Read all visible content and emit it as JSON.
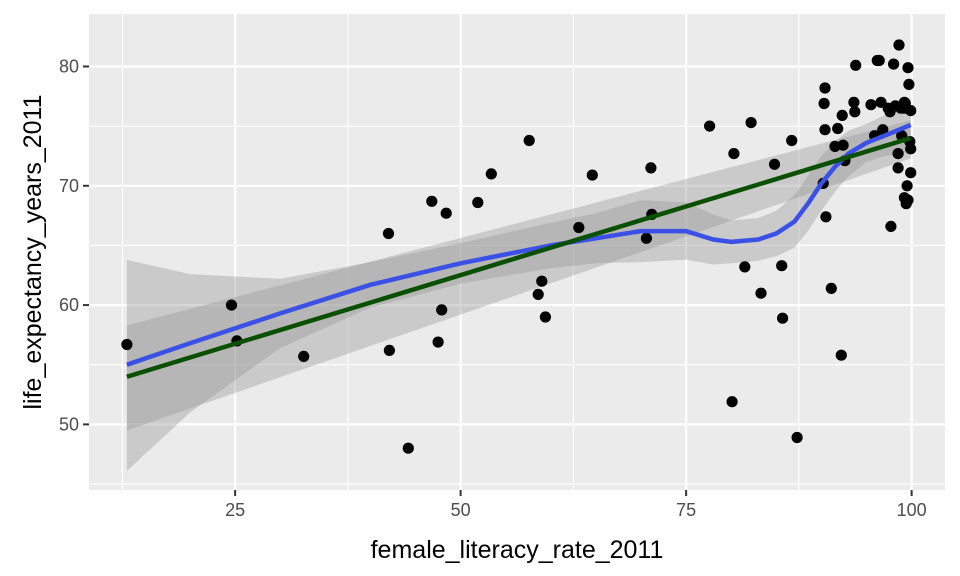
{
  "chart_data": {
    "type": "scatter",
    "xlabel": "female_literacy_rate_2011",
    "ylabel": "life_expectancy_years_2011",
    "xlim": [
      8.8,
      103.7
    ],
    "ylim": [
      44.5,
      84.4
    ],
    "x_ticks": [
      25,
      50,
      75,
      100
    ],
    "y_ticks": [
      50,
      60,
      70,
      80
    ],
    "x_tick_labels": [
      "25",
      "50",
      "75",
      "100"
    ],
    "y_tick_labels": [
      "50",
      "60",
      "70",
      "80"
    ],
    "grid": true,
    "legend": "none",
    "colors": {
      "panel": "#ebebeb",
      "grid": "#ffffff",
      "points": "#000000",
      "loess": "#3a50e6",
      "linear": "#0a5000",
      "band": "#999999"
    },
    "points": [
      [
        13.0,
        56.7
      ],
      [
        24.6,
        60.0
      ],
      [
        25.2,
        57.0
      ],
      [
        32.6,
        55.7
      ],
      [
        42.0,
        66.0
      ],
      [
        42.1,
        56.2
      ],
      [
        44.2,
        48.0
      ],
      [
        46.8,
        68.7
      ],
      [
        47.5,
        56.9
      ],
      [
        47.9,
        59.6
      ],
      [
        48.4,
        67.7
      ],
      [
        51.9,
        68.6
      ],
      [
        53.4,
        71.0
      ],
      [
        57.6,
        73.8
      ],
      [
        58.6,
        60.9
      ],
      [
        59.0,
        62.0
      ],
      [
        59.4,
        59.0
      ],
      [
        63.1,
        66.5
      ],
      [
        64.6,
        70.9
      ],
      [
        70.6,
        65.6
      ],
      [
        71.1,
        71.5
      ],
      [
        71.2,
        67.6
      ],
      [
        77.6,
        75.0
      ],
      [
        80.1,
        51.9
      ],
      [
        80.3,
        72.7
      ],
      [
        81.5,
        63.2
      ],
      [
        82.2,
        75.3
      ],
      [
        83.3,
        61.0
      ],
      [
        84.8,
        71.8
      ],
      [
        85.6,
        63.3
      ],
      [
        85.7,
        58.9
      ],
      [
        86.7,
        73.8
      ],
      [
        87.3,
        48.9
      ],
      [
        90.2,
        70.2
      ],
      [
        90.3,
        76.9
      ],
      [
        90.4,
        74.7
      ],
      [
        90.4,
        78.2
      ],
      [
        90.5,
        67.4
      ],
      [
        91.1,
        61.4
      ],
      [
        91.5,
        73.3
      ],
      [
        91.8,
        74.8
      ],
      [
        92.2,
        55.8
      ],
      [
        92.3,
        75.9
      ],
      [
        92.4,
        73.4
      ],
      [
        92.6,
        72.1
      ],
      [
        93.6,
        77.0
      ],
      [
        93.7,
        76.2
      ],
      [
        93.8,
        80.1
      ],
      [
        95.5,
        76.8
      ],
      [
        95.9,
        74.2
      ],
      [
        96.2,
        80.5
      ],
      [
        96.4,
        80.5
      ],
      [
        96.6,
        77.0
      ],
      [
        96.8,
        74.7
      ],
      [
        97.4,
        76.5
      ],
      [
        97.6,
        76.2
      ],
      [
        97.7,
        66.6
      ],
      [
        98.0,
        80.2
      ],
      [
        98.2,
        76.7
      ],
      [
        98.5,
        72.7
      ],
      [
        98.5,
        71.5
      ],
      [
        98.6,
        81.8
      ],
      [
        98.8,
        76.5
      ],
      [
        98.9,
        74.2
      ],
      [
        99.1,
        76.5
      ],
      [
        99.2,
        69.0
      ],
      [
        99.2,
        77.0
      ],
      [
        99.3,
        76.9
      ],
      [
        99.4,
        76.5
      ],
      [
        99.4,
        68.5
      ],
      [
        99.5,
        70.0
      ],
      [
        99.6,
        68.8
      ],
      [
        99.6,
        79.9
      ],
      [
        99.7,
        78.5
      ],
      [
        99.8,
        73.7
      ],
      [
        99.9,
        71.1
      ],
      [
        99.9,
        73.1
      ],
      [
        99.9,
        76.3
      ]
    ],
    "linear_fit": {
      "x": [
        13.0,
        99.9
      ],
      "y": [
        54.0,
        74.0
      ],
      "ci_upper": [
        58.3,
        75.5
      ],
      "ci_lower": [
        49.5,
        72.3
      ]
    },
    "loess_fit": {
      "x": [
        13.0,
        20,
        30,
        40,
        50,
        60,
        65,
        70,
        75,
        78,
        80,
        83,
        85,
        87,
        88.5,
        90,
        91.5,
        93,
        95,
        97,
        99.9
      ],
      "y": [
        55.0,
        56.8,
        59.3,
        61.7,
        63.5,
        65.0,
        65.6,
        66.2,
        66.2,
        65.5,
        65.3,
        65.5,
        66.0,
        67.0,
        68.5,
        70.2,
        71.6,
        72.7,
        73.6,
        74.2,
        75.1
      ],
      "ci_upper": [
        63.8,
        62.6,
        62.2,
        63.6,
        65.2,
        66.9,
        67.7,
        68.8,
        68.6,
        67.6,
        67.1,
        67.3,
        67.9,
        69.2,
        70.8,
        72.5,
        73.7,
        74.6,
        75.2,
        75.9,
        77.4
      ],
      "ci_lower": [
        46.1,
        51.0,
        56.4,
        59.8,
        61.8,
        63.1,
        63.5,
        63.6,
        63.8,
        63.4,
        63.5,
        63.7,
        64.1,
        64.8,
        66.2,
        67.9,
        69.5,
        70.8,
        72.0,
        72.5,
        72.8
      ]
    }
  }
}
